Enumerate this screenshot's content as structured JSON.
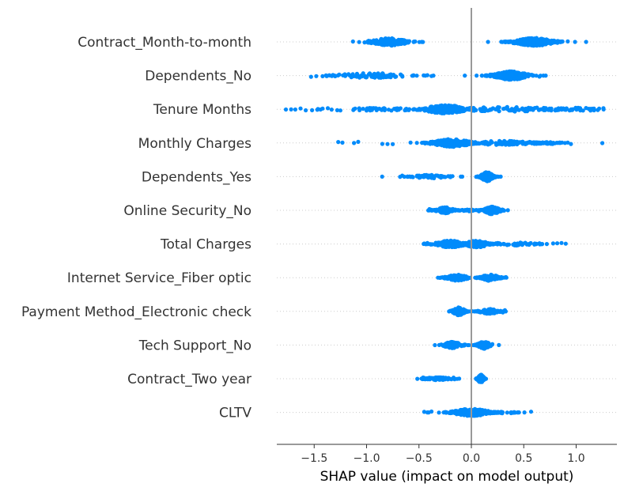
{
  "chart_data": {
    "type": "scatter",
    "subtype": "shap-beeswarm",
    "title": "",
    "xlabel": "SHAP value (impact on model output)",
    "ylabel": "",
    "xlim": [
      -1.85,
      1.4
    ],
    "xticks": [
      -1.5,
      -1.0,
      -0.5,
      0.0,
      0.5,
      1.0
    ],
    "xtick_labels": [
      "−1.5",
      "−1.0",
      "−0.5",
      "0.0",
      "0.5",
      "1.0"
    ],
    "zero_line": 0.0,
    "grid": false,
    "legend": "none",
    "point_color": "#008bfb",
    "features": [
      {
        "name": "Contract_Month-to-month",
        "clusters": [
          {
            "center": -0.78,
            "spread": 0.12,
            "count": 170,
            "halfwidth": 0.26
          },
          {
            "center": 0.6,
            "spread": 0.13,
            "count": 220,
            "halfwidth": 0.28
          }
        ],
        "outliers": [
          -1.13,
          -0.98,
          -0.55,
          0.85,
          0.92
        ]
      },
      {
        "name": "Dependents_No",
        "clusters": [
          {
            "center": -0.95,
            "spread": 0.22,
            "count": 80,
            "halfwidth": 0.18
          },
          {
            "center": 0.38,
            "spread": 0.11,
            "count": 230,
            "halfwidth": 0.3
          }
        ],
        "outliers": [
          -1.53,
          -1.48,
          -1.42,
          -1.38,
          -1.3,
          -0.42,
          -0.38,
          0.18,
          0.62,
          0.65
        ]
      },
      {
        "name": "Tenure Months",
        "clusters": [
          {
            "center": -0.25,
            "spread": 0.14,
            "count": 170,
            "halfwidth": 0.3
          },
          {
            "center": 0.35,
            "spread": 0.38,
            "count": 120,
            "halfwidth": 0.16
          },
          {
            "center": -0.85,
            "spread": 0.32,
            "count": 55,
            "halfwidth": 0.1
          },
          {
            "center": 1.05,
            "spread": 0.12,
            "count": 30,
            "halfwidth": 0.13
          }
        ],
        "outliers": [
          -1.77,
          -1.72,
          -1.68,
          -1.63,
          -1.58,
          -1.52,
          -1.47,
          -1.42,
          -1.37,
          -1.28,
          -1.25,
          1.22,
          1.26
        ]
      },
      {
        "name": "Monthly Charges",
        "clusters": [
          {
            "center": -0.18,
            "spread": 0.13,
            "count": 200,
            "halfwidth": 0.28
          },
          {
            "center": 0.3,
            "spread": 0.24,
            "count": 100,
            "halfwidth": 0.14
          },
          {
            "center": 0.7,
            "spread": 0.12,
            "count": 30,
            "halfwidth": 0.08
          }
        ],
        "outliers": [
          -1.27,
          -1.23,
          -1.12,
          -1.08,
          -0.85,
          -0.8,
          -0.75,
          -0.58,
          0.92,
          0.95,
          1.25
        ]
      },
      {
        "name": "Dependents_Yes",
        "clusters": [
          {
            "center": -0.4,
            "spread": 0.12,
            "count": 60,
            "halfwidth": 0.12
          },
          {
            "center": 0.15,
            "spread": 0.04,
            "count": 160,
            "halfwidth": 0.32
          }
        ],
        "outliers": [
          -0.68,
          -0.66,
          -0.64,
          -0.2,
          -0.18
        ]
      },
      {
        "name": "Online Security_No",
        "clusters": [
          {
            "center": -0.25,
            "spread": 0.06,
            "count": 120,
            "halfwidth": 0.22
          },
          {
            "center": 0.2,
            "spread": 0.05,
            "count": 140,
            "halfwidth": 0.28
          },
          {
            "center": 0.02,
            "spread": 0.08,
            "count": 30,
            "halfwidth": 0.08
          }
        ],
        "outliers": [
          -0.4,
          -0.38,
          0.28,
          0.3
        ]
      },
      {
        "name": "Total Charges",
        "clusters": [
          {
            "center": -0.2,
            "spread": 0.1,
            "count": 150,
            "halfwidth": 0.24
          },
          {
            "center": 0.05,
            "spread": 0.08,
            "count": 120,
            "halfwidth": 0.24
          },
          {
            "center": 0.4,
            "spread": 0.15,
            "count": 50,
            "halfwidth": 0.12
          }
        ],
        "outliers": [
          -0.45,
          -0.42,
          0.62,
          0.65,
          0.72,
          0.78,
          0.82,
          0.86,
          0.9
        ]
      },
      {
        "name": "Internet Service_Fiber optic",
        "clusters": [
          {
            "center": -0.14,
            "spread": 0.07,
            "count": 110,
            "halfwidth": 0.22
          },
          {
            "center": 0.18,
            "spread": 0.06,
            "count": 110,
            "halfwidth": 0.22
          }
        ],
        "outliers": [
          -0.26,
          -0.25,
          0.32,
          0.33
        ]
      },
      {
        "name": "Payment Method_Electronic check",
        "clusters": [
          {
            "center": -0.12,
            "spread": 0.04,
            "count": 130,
            "halfwidth": 0.28
          },
          {
            "center": 0.17,
            "spread": 0.06,
            "count": 80,
            "halfwidth": 0.18
          }
        ],
        "outliers": [
          -0.2,
          0.3,
          0.32
        ]
      },
      {
        "name": "Tech Support_No",
        "clusters": [
          {
            "center": -0.18,
            "spread": 0.06,
            "count": 100,
            "halfwidth": 0.22
          },
          {
            "center": 0.12,
            "spread": 0.04,
            "count": 120,
            "halfwidth": 0.26
          }
        ],
        "outliers": [
          -0.27,
          -0.26,
          0.2
        ]
      },
      {
        "name": "Contract_Two year",
        "clusters": [
          {
            "center": -0.32,
            "spread": 0.09,
            "count": 60,
            "halfwidth": 0.1
          },
          {
            "center": 0.09,
            "spread": 0.02,
            "count": 90,
            "halfwidth": 0.3
          }
        ],
        "outliers": [
          -0.46,
          -0.45,
          -0.17,
          -0.16
        ]
      },
      {
        "name": "CLTV",
        "clusters": [
          {
            "center": 0.0,
            "spread": 0.12,
            "count": 230,
            "halfwidth": 0.26
          },
          {
            "center": 0.3,
            "spread": 0.08,
            "count": 30,
            "halfwidth": 0.08
          }
        ],
        "outliers": [
          -0.45,
          -0.42,
          -0.38,
          0.42,
          0.57
        ]
      }
    ]
  }
}
